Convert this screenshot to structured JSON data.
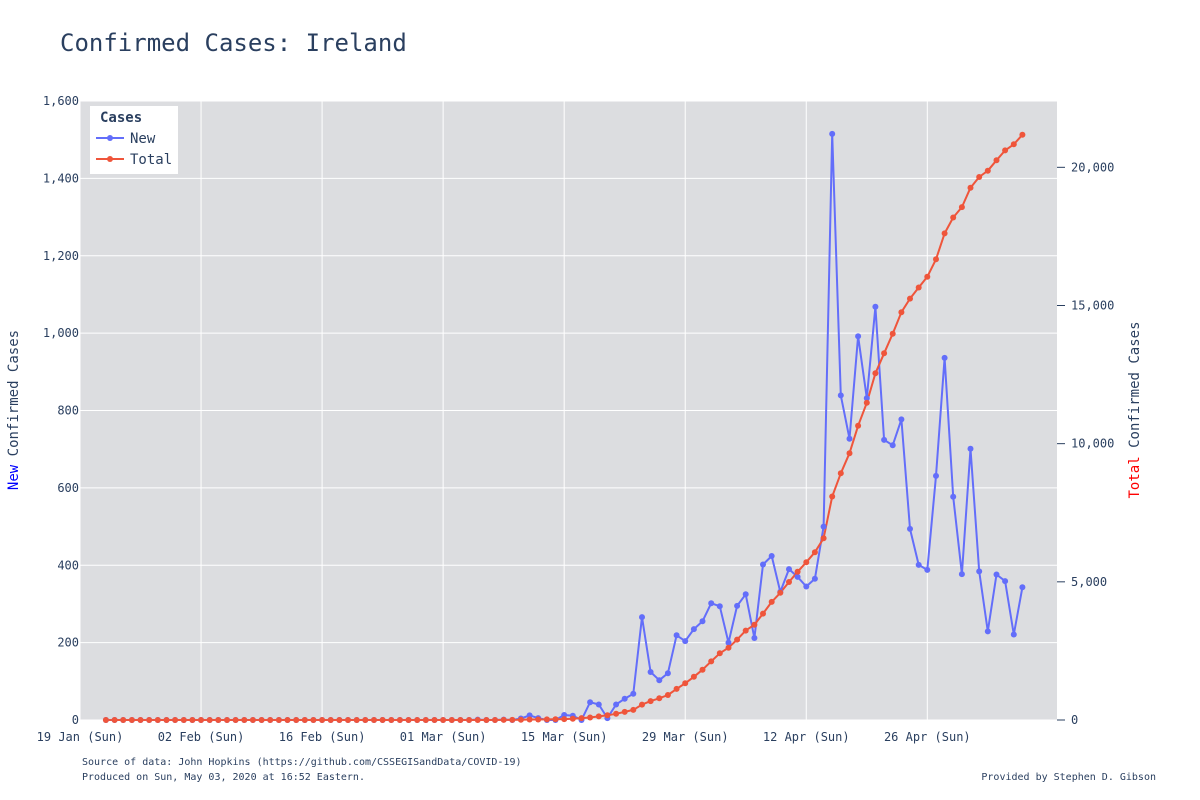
{
  "chart_data": {
    "type": "line",
    "title": "Confirmed Cases: Ireland",
    "ylabel_left_prefix": "New",
    "ylabel_left_rest": " Confirmed Cases",
    "ylabel_right_prefix": "Total",
    "ylabel_right_rest": " Confirmed Cases",
    "x_start": "2020-01-22",
    "x_ticks": [
      "19 Jan (Sun)",
      "02 Feb (Sun)",
      "16 Feb (Sun)",
      "01 Mar (Sun)",
      "15 Mar (Sun)",
      "29 Mar (Sun)",
      "12 Apr (Sun)",
      "26 Apr (Sun)"
    ],
    "x_tick_dates": [
      "2020-01-19",
      "2020-02-02",
      "2020-02-16",
      "2020-03-01",
      "2020-03-15",
      "2020-03-29",
      "2020-04-12",
      "2020-04-26"
    ],
    "x_range": [
      "2020-01-19",
      "2020-05-11"
    ],
    "ylim_left": [
      0,
      1600
    ],
    "y_ticks_left": [
      "0",
      "200",
      "400",
      "600",
      "800",
      "1,000",
      "1,200",
      "1,400",
      "1,600"
    ],
    "y_tick_values_left": [
      0,
      200,
      400,
      600,
      800,
      1000,
      1200,
      1400,
      1600
    ],
    "ylim_right": [
      0,
      22400
    ],
    "y_ticks_right": [
      "0",
      "5,000",
      "10,000",
      "15,000",
      "20,000"
    ],
    "y_tick_values_right": [
      0,
      5000,
      10000,
      15000,
      20000
    ],
    "legend": {
      "title": "Cases",
      "placement": "top-left"
    },
    "grid": true,
    "series": [
      {
        "name": "New",
        "axis": "left",
        "color": "#636efa",
        "values": [
          0,
          0,
          0,
          0,
          0,
          0,
          0,
          0,
          0,
          0,
          0,
          0,
          0,
          0,
          0,
          0,
          0,
          0,
          0,
          0,
          0,
          0,
          0,
          0,
          0,
          0,
          0,
          0,
          0,
          0,
          0,
          0,
          0,
          0,
          0,
          0,
          0,
          0,
          0,
          0,
          0,
          0,
          0,
          1,
          0,
          0,
          1,
          0,
          4,
          12,
          5,
          0,
          0,
          13,
          11,
          0,
          46,
          40,
          5,
          40,
          55,
          68,
          266,
          124,
          103,
          121,
          219,
          204,
          235,
          255,
          302,
          294,
          200,
          295,
          325,
          212,
          402,
          424,
          331,
          390,
          370,
          345,
          365,
          500,
          1515,
          839,
          727,
          992,
          832,
          1068,
          724,
          710,
          777,
          494,
          401,
          388,
          631,
          936,
          577,
          377,
          701,
          384,
          229,
          376,
          359,
          221,
          343
        ]
      },
      {
        "name": "Total",
        "axis": "right",
        "color": "#ef553b",
        "values": [
          0,
          0,
          0,
          0,
          0,
          0,
          0,
          0,
          0,
          0,
          0,
          0,
          0,
          0,
          0,
          0,
          0,
          0,
          0,
          0,
          0,
          0,
          0,
          0,
          0,
          0,
          0,
          0,
          0,
          0,
          0,
          0,
          0,
          0,
          0,
          0,
          0,
          0,
          0,
          0,
          0,
          0,
          0,
          1,
          1,
          1,
          2,
          2,
          6,
          18,
          19,
          21,
          24,
          34,
          43,
          70,
          90,
          129,
          169,
          223,
          292,
          366,
          557,
          683,
          785,
          906,
          1125,
          1329,
          1564,
          1819,
          2121,
          2415,
          2615,
          2910,
          3235,
          3447,
          3849,
          4273,
          4604,
          4994,
          5364,
          5709,
          6074,
          6574,
          8089,
          8928,
          9655,
          10647,
          11479,
          12547,
          13271,
          13980,
          14758,
          15251,
          15652,
          16040,
          16671,
          17607,
          18184,
          18561,
          19262,
          19648,
          19877,
          20253,
          20612,
          20833,
          21176
        ]
      }
    ]
  },
  "source_line": "Source of data: John Hopkins (https://github.com/CSSEGISandData/COVID-19)",
  "produced_line": "Produced on Sun, May 03, 2020 at 16:52 Eastern.",
  "credit_line": "Provided by Stephen D. Gibson"
}
